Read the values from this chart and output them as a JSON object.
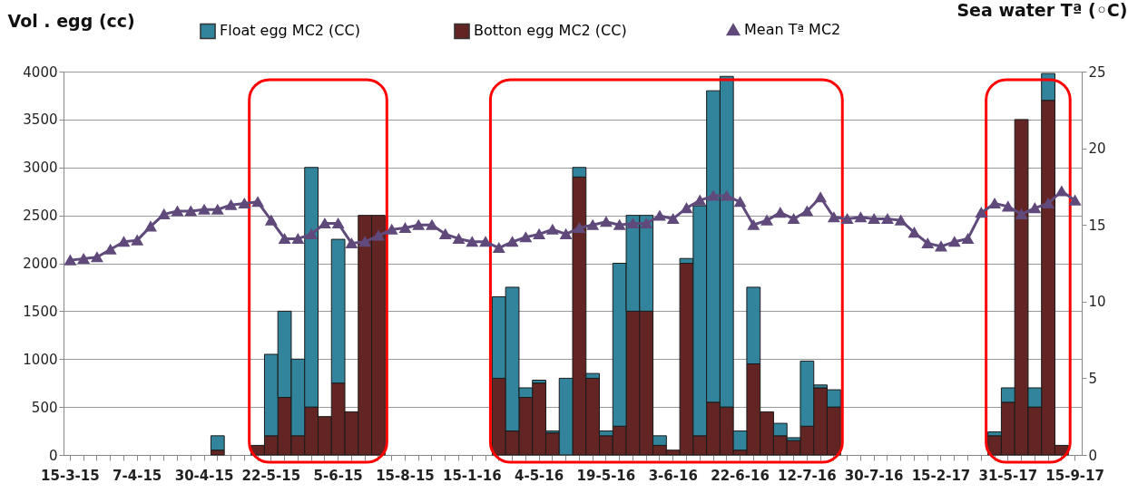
{
  "chart_data": {
    "type": "bar",
    "stacked": true,
    "ylabel": "Vol . egg (cc)",
    "y2label": "Sea water Tª (◦C)",
    "categories": [
      "15-3-15",
      null,
      null,
      null,
      null,
      "7-4-15",
      null,
      null,
      null,
      null,
      "30-4-15",
      null,
      null,
      null,
      null,
      "22-5-15",
      null,
      null,
      null,
      null,
      "5-6-15",
      null,
      null,
      null,
      null,
      "15-8-15",
      null,
      null,
      null,
      null,
      "15-1-16",
      null,
      null,
      null,
      null,
      "4-5-16",
      null,
      null,
      null,
      null,
      "19-5-16",
      null,
      null,
      null,
      null,
      "3-6-16",
      null,
      null,
      null,
      null,
      "22-6-16",
      null,
      null,
      null,
      null,
      "12-7-16",
      null,
      null,
      null,
      null,
      "30-7-16",
      null,
      null,
      null,
      null,
      "15-2-17",
      null,
      null,
      null,
      null,
      "31-5-17",
      null,
      null,
      null,
      null,
      "15-9-17"
    ],
    "series": [
      {
        "name": "Botton egg MC2 (CC)",
        "color": "#632523",
        "values": [
          null,
          null,
          null,
          null,
          null,
          null,
          null,
          null,
          null,
          null,
          null,
          50,
          null,
          null,
          100,
          200,
          600,
          200,
          500,
          400,
          750,
          450,
          2500,
          2500,
          null,
          null,
          null,
          null,
          null,
          null,
          null,
          null,
          800,
          250,
          600,
          750,
          230,
          null,
          2900,
          800,
          200,
          300,
          1500,
          1500,
          100,
          50,
          2000,
          200,
          550,
          500,
          50,
          950,
          450,
          200,
          150,
          300,
          700,
          500,
          null,
          null,
          null,
          null,
          null,
          null,
          null,
          null,
          null,
          null,
          null,
          200,
          550,
          3500,
          500,
          3700,
          100,
          null
        ]
      },
      {
        "name": "Float egg MC2 (CC)",
        "color": "#31849b",
        "values": [
          null,
          null,
          null,
          null,
          null,
          null,
          null,
          null,
          null,
          null,
          null,
          150,
          null,
          null,
          null,
          850,
          900,
          800,
          2500,
          null,
          1500,
          null,
          null,
          null,
          null,
          null,
          null,
          null,
          null,
          null,
          null,
          null,
          850,
          1500,
          100,
          30,
          20,
          800,
          100,
          50,
          50,
          1700,
          1000,
          1000,
          100,
          null,
          50,
          2400,
          3250,
          3450,
          200,
          800,
          null,
          130,
          30,
          680,
          30,
          180,
          null,
          null,
          null,
          null,
          null,
          null,
          null,
          null,
          null,
          null,
          null,
          40,
          150,
          null,
          200,
          280,
          null,
          null
        ]
      },
      {
        "name": "Mean Tª MC2",
        "color": "#604a7b",
        "type": "line",
        "axis": "y2",
        "marker": "triangle",
        "line_style": "solid",
        "values": [
          12.7,
          12.8,
          12.9,
          13.4,
          13.9,
          14.0,
          14.9,
          15.7,
          15.9,
          15.9,
          16.0,
          16.0,
          16.3,
          16.4,
          16.5,
          15.3,
          14.1,
          14.1,
          14.4,
          15.1,
          15.1,
          13.8,
          13.9,
          14.3,
          14.7,
          14.8,
          15.0,
          15.0,
          14.4,
          14.1,
          13.9,
          13.9,
          13.5,
          13.9,
          14.2,
          14.4,
          14.7,
          14.4,
          14.8,
          15.0,
          15.2,
          15.0,
          15.1,
          15.1,
          15.6,
          15.4,
          16.1,
          16.6,
          16.9,
          16.9,
          16.5,
          15.0,
          15.3,
          15.8,
          15.4,
          15.9,
          16.8,
          15.5,
          15.4,
          15.5,
          15.4,
          15.4,
          15.3,
          14.5,
          13.8,
          13.6,
          13.9,
          14.1,
          15.8,
          16.4,
          16.2,
          15.7,
          16.1,
          16.4,
          17.2,
          16.6
        ]
      }
    ],
    "ylim": [
      0,
      4000
    ],
    "yticks": [
      0,
      500,
      1000,
      1500,
      2000,
      2500,
      3000,
      3500,
      4000
    ],
    "y2lim": [
      0,
      25
    ],
    "y2ticks": [
      0,
      5,
      10,
      15,
      20,
      25
    ],
    "grid": "y",
    "legend": "top"
  }
}
